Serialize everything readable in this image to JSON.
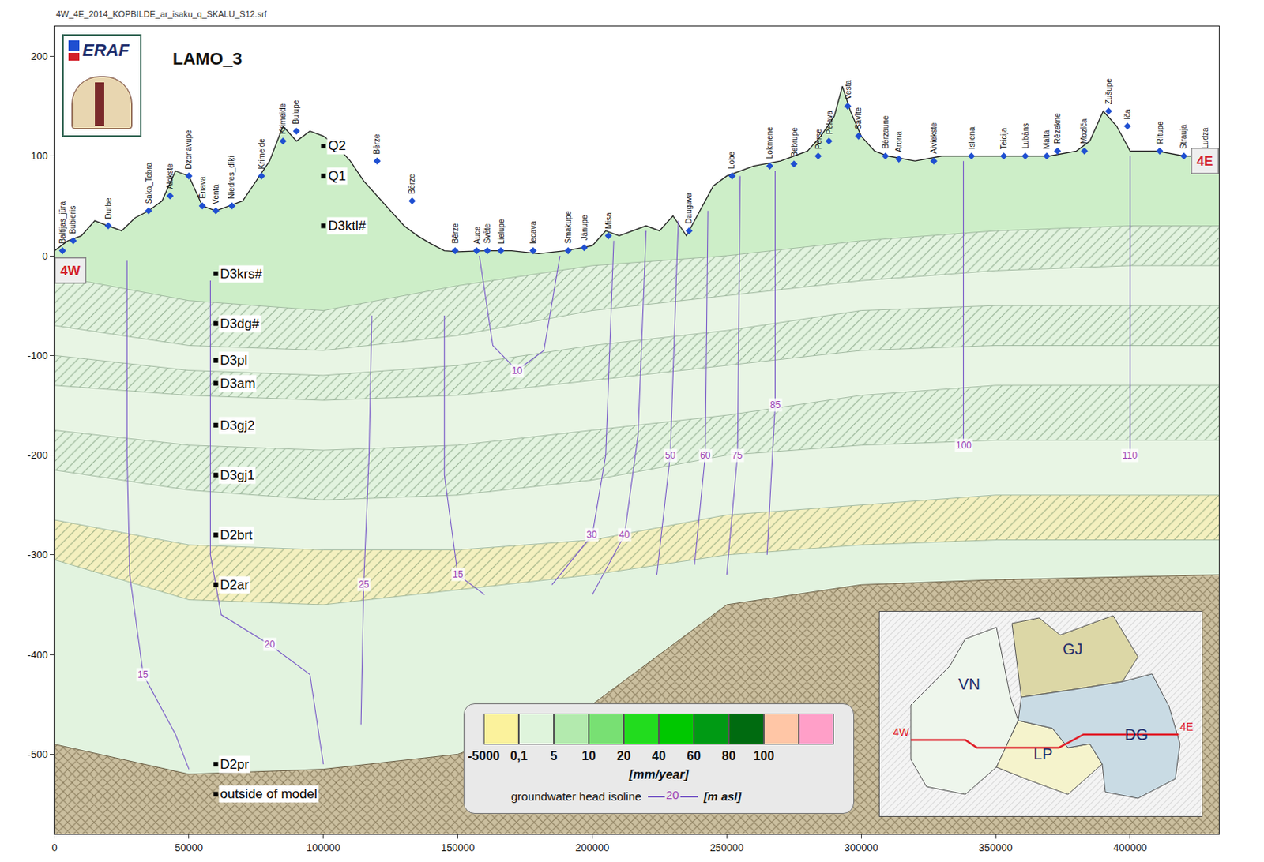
{
  "chart_data": {
    "type": "cross_section",
    "header": "4W_4E_2014_KOPBILDE_ar_isaku_q_SKALU_S12.srf",
    "title": "LAMO_3",
    "logo_text": "ERAF",
    "xlim": [
      0,
      433000
    ],
    "ylim": [
      -580,
      230
    ],
    "xticks": [
      0,
      50000,
      100000,
      150000,
      200000,
      250000,
      300000,
      350000,
      400000
    ],
    "yticks": [
      -500,
      -400,
      -300,
      -200,
      -100,
      0,
      100,
      200
    ],
    "grid": false,
    "section_ends": [
      {
        "label": "4W",
        "x": 0,
        "y": -15
      },
      {
        "label": "4E",
        "x": 433000,
        "y": 95
      }
    ],
    "surface": {
      "x": [
        0,
        5000,
        10000,
        15000,
        20000,
        25000,
        30000,
        35000,
        40000,
        45000,
        50000,
        55000,
        60000,
        65000,
        70000,
        75000,
        80000,
        85000,
        90000,
        95000,
        100000,
        105000,
        110000,
        115000,
        120000,
        125000,
        130000,
        135000,
        140000,
        145000,
        150000,
        160000,
        170000,
        180000,
        190000,
        200000,
        205000,
        210000,
        215000,
        220000,
        225000,
        230000,
        235000,
        240000,
        245000,
        250000,
        255000,
        260000,
        270000,
        280000,
        285000,
        290000,
        293000,
        296000,
        300000,
        305000,
        310000,
        320000,
        330000,
        340000,
        350000,
        360000,
        370000,
        380000,
        385000,
        390000,
        395000,
        400000,
        410000,
        420000,
        433000
      ],
      "y": [
        5,
        15,
        20,
        35,
        30,
        25,
        38,
        45,
        55,
        85,
        80,
        50,
        45,
        50,
        55,
        75,
        95,
        130,
        115,
        125,
        120,
        110,
        95,
        75,
        60,
        45,
        30,
        20,
        12,
        5,
        4,
        5,
        5,
        2,
        5,
        10,
        25,
        20,
        25,
        30,
        25,
        40,
        20,
        45,
        70,
        80,
        85,
        90,
        95,
        105,
        120,
        140,
        170,
        145,
        120,
        105,
        100,
        95,
        100,
        100,
        100,
        100,
        100,
        105,
        115,
        145,
        130,
        105,
        105,
        100,
        100
      ]
    },
    "layer_x": [
      0,
      50000,
      100000,
      150000,
      200000,
      250000,
      300000,
      350000,
      400000,
      433000
    ],
    "layers": [
      {
        "name": "D3krs#",
        "color": "#cdeec8",
        "bottom": [
          -20,
          -45,
          -55,
          -30,
          -10,
          0,
          15,
          25,
          30,
          30
        ]
      },
      {
        "name": "D3dg#",
        "color": "#e2f3df",
        "bottom": [
          -70,
          -90,
          -95,
          -80,
          -55,
          -40,
          -25,
          -15,
          -10,
          -10
        ]
      },
      {
        "name": "D3pl",
        "color": "#e8f5e4",
        "bottom": [
          -100,
          -115,
          -120,
          -110,
          -90,
          -75,
          -55,
          -50,
          -50,
          -50
        ]
      },
      {
        "name": "D3am",
        "color": "#e2f3df",
        "bottom": [
          -130,
          -140,
          -145,
          -140,
          -125,
          -110,
          -95,
          -90,
          -90,
          -90
        ]
      },
      {
        "name": "D3gj2",
        "color": "#e8f5e4",
        "bottom": [
          -175,
          -190,
          -195,
          -190,
          -175,
          -160,
          -140,
          -130,
          -130,
          -130
        ]
      },
      {
        "name": "D3gj1",
        "color": "#e2f3df",
        "bottom": [
          -215,
          -235,
          -245,
          -240,
          -225,
          -200,
          -190,
          -185,
          -185,
          -185
        ]
      },
      {
        "name": "D2brt",
        "color": "#e8f5e4",
        "bottom": [
          -265,
          -290,
          -295,
          -295,
          -285,
          -260,
          -250,
          -240,
          -240,
          -240
        ]
      },
      {
        "name": "D2ar",
        "color": "#f4f0bf",
        "bottom": [
          -305,
          -345,
          -350,
          -335,
          -320,
          -300,
          -290,
          -285,
          -285,
          -285
        ]
      },
      {
        "name": "D2pr",
        "color": "#e2f3df",
        "bottom": [
          -490,
          -520,
          -515,
          -500,
          -450,
          -350,
          -330,
          -325,
          -322,
          -320
        ]
      }
    ],
    "outside": {
      "name": "outside of model",
      "color": "#cbbf9f"
    },
    "layer_labels": [
      {
        "text": "Q2",
        "x": 100000,
        "y": 110
      },
      {
        "text": "Q1",
        "x": 100000,
        "y": 80
      },
      {
        "text": "D3ktl#",
        "x": 100000,
        "y": 30
      },
      {
        "text": "D3krs#",
        "x": 60000,
        "y": -18
      },
      {
        "text": "D3dg#",
        "x": 60000,
        "y": -68
      },
      {
        "text": "D3pl",
        "x": 60000,
        "y": -105
      },
      {
        "text": "D3am",
        "x": 60000,
        "y": -128
      },
      {
        "text": "D3gj2",
        "x": 60000,
        "y": -170
      },
      {
        "text": "D3gj1",
        "x": 60000,
        "y": -220
      },
      {
        "text": "D2brt",
        "x": 60000,
        "y": -280
      },
      {
        "text": "D2ar",
        "x": 60000,
        "y": -330
      },
      {
        "text": "D2pr",
        "x": 60000,
        "y": -510
      },
      {
        "text": "outside of model",
        "x": 60000,
        "y": -540
      }
    ],
    "isolines": [
      {
        "head": 15,
        "x": [
          27000,
          27000,
          28000,
          33000,
          45000,
          50000
        ],
        "y": [
          -5,
          -200,
          -320,
          -420,
          -480,
          -515
        ]
      },
      {
        "head": 20,
        "x": [
          58000,
          58000,
          62000,
          80000,
          95000,
          100000
        ],
        "y": [
          -25,
          -300,
          -360,
          -390,
          -420,
          -510
        ]
      },
      {
        "head": 25,
        "x": [
          118000,
          117000,
          115000,
          114000
        ],
        "y": [
          -60,
          -200,
          -330,
          -470
        ]
      },
      {
        "head": 15,
        "x": [
          145000,
          145000,
          150000,
          160000
        ],
        "y": [
          -60,
          -220,
          -320,
          -340
        ]
      },
      {
        "head": 10,
        "x": [
          158000,
          163000,
          172000,
          182000,
          188000
        ],
        "y": [
          0,
          -90,
          -115,
          -95,
          0
        ]
      },
      {
        "head": 30,
        "x": [
          208000,
          205000,
          200000,
          185000
        ],
        "y": [
          15,
          -200,
          -280,
          -330
        ]
      },
      {
        "head": 40,
        "x": [
          220000,
          217000,
          212000,
          200000
        ],
        "y": [
          25,
          -180,
          -280,
          -340
        ]
      },
      {
        "head": 50,
        "x": [
          232000,
          229000,
          224000
        ],
        "y": [
          35,
          -200,
          -320
        ]
      },
      {
        "head": 60,
        "x": [
          243000,
          242000,
          238000
        ],
        "y": [
          45,
          -200,
          -310
        ]
      },
      {
        "head": 75,
        "x": [
          255000,
          254000,
          250000
        ],
        "y": [
          80,
          -200,
          -320
        ]
      },
      {
        "head": 85,
        "x": [
          268000,
          268000,
          265000
        ],
        "y": [
          85,
          -150,
          -300
        ]
      },
      {
        "head": 100,
        "x": [
          338000,
          338000
        ],
        "y": [
          95,
          -190
        ]
      },
      {
        "head": 110,
        "x": [
          400000,
          400000
        ],
        "y": [
          100,
          -200
        ]
      }
    ],
    "rivers": [
      {
        "name": "Baltijas_jūra",
        "x": 3000,
        "y": 5
      },
      {
        "name": "Bubieris",
        "x": 7000,
        "y": 15
      },
      {
        "name": "Durbe",
        "x": 20000,
        "y": 30
      },
      {
        "name": "Saka_Tebra",
        "x": 35000,
        "y": 45
      },
      {
        "name": "Alokste",
        "x": 43000,
        "y": 60
      },
      {
        "name": "Dzonavupe",
        "x": 50000,
        "y": 80
      },
      {
        "name": "Ēnava",
        "x": 55000,
        "y": 50
      },
      {
        "name": "Venta",
        "x": 60000,
        "y": 45
      },
      {
        "name": "Niedres_dīķi",
        "x": 66000,
        "y": 50
      },
      {
        "name": "Krimelde",
        "x": 77000,
        "y": 80
      },
      {
        "name": "Krimeide",
        "x": 85000,
        "y": 115
      },
      {
        "name": "Bulupe",
        "x": 90000,
        "y": 125
      },
      {
        "name": "Bērze",
        "x": 120000,
        "y": 95
      },
      {
        "name": "Bērze",
        "x": 133000,
        "y": 55
      },
      {
        "name": "Bērze",
        "x": 149000,
        "y": 5
      },
      {
        "name": "Auce",
        "x": 157000,
        "y": 5
      },
      {
        "name": "Svēte",
        "x": 161000,
        "y": 5
      },
      {
        "name": "Lielupe",
        "x": 166000,
        "y": 5
      },
      {
        "name": "Iecava",
        "x": 178000,
        "y": 5
      },
      {
        "name": "Smakupe",
        "x": 191000,
        "y": 5
      },
      {
        "name": "Jānupe",
        "x": 197000,
        "y": 8
      },
      {
        "name": "Misa",
        "x": 206000,
        "y": 20
      },
      {
        "name": "Daugava",
        "x": 236000,
        "y": 25
      },
      {
        "name": "Lobe",
        "x": 252000,
        "y": 80
      },
      {
        "name": "Lokmene",
        "x": 266000,
        "y": 90
      },
      {
        "name": "Bebrupe",
        "x": 275000,
        "y": 92
      },
      {
        "name": "Pērse",
        "x": 284000,
        "y": 100
      },
      {
        "name": "Pelava",
        "x": 288000,
        "y": 115
      },
      {
        "name": "Vesta",
        "x": 295000,
        "y": 150
      },
      {
        "name": "Savīte",
        "x": 299000,
        "y": 120
      },
      {
        "name": "Bērzaune",
        "x": 309000,
        "y": 100
      },
      {
        "name": "Arona",
        "x": 314000,
        "y": 97
      },
      {
        "name": "Aiviekste",
        "x": 327000,
        "y": 95
      },
      {
        "name": "Isliena",
        "x": 341000,
        "y": 100
      },
      {
        "name": "Teicija",
        "x": 353000,
        "y": 100
      },
      {
        "name": "Lubāns",
        "x": 361000,
        "y": 100
      },
      {
        "name": "Malta",
        "x": 369000,
        "y": 100
      },
      {
        "name": "Rēzekne",
        "x": 373000,
        "y": 105
      },
      {
        "name": "Mozīča",
        "x": 383000,
        "y": 105
      },
      {
        "name": "Zušupe",
        "x": 392000,
        "y": 145
      },
      {
        "name": "Iča",
        "x": 399000,
        "y": 130
      },
      {
        "name": "Rītupe",
        "x": 411000,
        "y": 105
      },
      {
        "name": "Strauja",
        "x": 420000,
        "y": 100
      },
      {
        "name": "Ludza",
        "x": 428000,
        "y": 100
      }
    ],
    "color_legend": {
      "colors": [
        "#fbf29c",
        "#dff4dc",
        "#b3eaae",
        "#78e073",
        "#22dc1e",
        "#00c800",
        "#009a14",
        "#006b10",
        "#ffc6a6",
        "#ff9fc8"
      ],
      "ticks": [
        -5000,
        {
          "value": 0.1,
          "label": "0,1"
        },
        5,
        10,
        20,
        40,
        60,
        80,
        100
      ],
      "unit": "[mm/year]",
      "isoline_text": "groundwater head isoline",
      "isoline_value": 20,
      "isoline_unit": "[m asl]"
    },
    "inset_map": {
      "regions": [
        {
          "name": "VN",
          "color": "#eef6ec"
        },
        {
          "name": "GJ",
          "color": "#dcd7a6"
        },
        {
          "name": "LP",
          "color": "#f5f3cc"
        },
        {
          "name": "DG",
          "color": "#c9dbe4"
        }
      ]
    }
  }
}
